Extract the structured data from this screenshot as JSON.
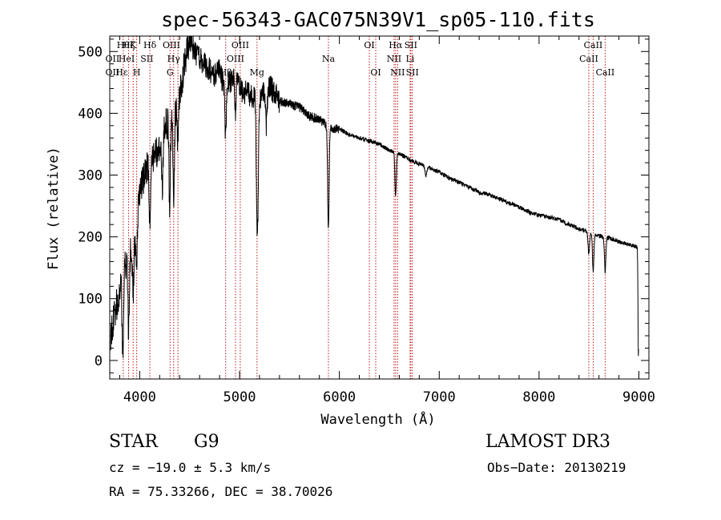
{
  "chart_data": {
    "type": "line",
    "title": "spec-56343-GAC075N39V1_sp05-110.fits",
    "xlabel": "Wavelength (Å)",
    "ylabel": "Flux (relative)",
    "xlim": [
      3700,
      9100
    ],
    "ylim": [
      -30,
      525
    ],
    "xticks": [
      4000,
      5000,
      6000,
      7000,
      8000,
      9000
    ],
    "yticks": [
      0,
      100,
      200,
      300,
      400,
      500
    ],
    "x_minor_step": 200,
    "y_minor_step": 20,
    "continuum": {
      "x": [
        3700,
        3750,
        3800,
        3850,
        3900,
        3950,
        4000,
        4050,
        4100,
        4150,
        4200,
        4250,
        4300,
        4350,
        4400,
        4450,
        4500,
        4550,
        4600,
        4650,
        4700,
        4750,
        4800,
        4850,
        4900,
        4950,
        5000,
        5100,
        5200,
        5300,
        5400,
        5500,
        5600,
        5700,
        5800,
        5900,
        6000,
        6100,
        6200,
        6300,
        6400,
        6500,
        6600,
        6700,
        6800,
        6900,
        7000,
        7100,
        7200,
        7300,
        7400,
        7500,
        7600,
        7700,
        7800,
        7900,
        8000,
        8100,
        8200,
        8300,
        8400,
        8500,
        8600,
        8700,
        8800,
        8900,
        8990
      ],
      "y": [
        30,
        80,
        110,
        150,
        170,
        200,
        270,
        300,
        320,
        330,
        350,
        380,
        390,
        400,
        430,
        480,
        520,
        500,
        490,
        480,
        470,
        460,
        470,
        440,
        450,
        460,
        440,
        430,
        425,
        445,
        420,
        415,
        410,
        395,
        390,
        375,
        375,
        365,
        360,
        355,
        350,
        340,
        335,
        325,
        318,
        312,
        305,
        295,
        288,
        280,
        272,
        268,
        262,
        255,
        248,
        240,
        235,
        232,
        228,
        220,
        213,
        207,
        202,
        198,
        192,
        188,
        183
      ]
    },
    "absorption_lines": [
      {
        "x": 3830,
        "depth": 120
      },
      {
        "x": 3889,
        "depth": 120
      },
      {
        "x": 3934,
        "depth": 90
      },
      {
        "x": 3968,
        "depth": 100
      },
      {
        "x": 4102,
        "depth": 90
      },
      {
        "x": 4227,
        "depth": 90
      },
      {
        "x": 4300,
        "depth": 140
      },
      {
        "x": 4340,
        "depth": 140
      },
      {
        "x": 4383,
        "depth": 70
      },
      {
        "x": 4861,
        "depth": 80
      },
      {
        "x": 4957,
        "depth": 60
      },
      {
        "x": 5172,
        "depth": 140
      },
      {
        "x": 5183,
        "depth": 160
      },
      {
        "x": 5270,
        "depth": 60
      },
      {
        "x": 5890,
        "depth": 165
      },
      {
        "x": 6563,
        "depth": 70
      },
      {
        "x": 6867,
        "depth": 15
      },
      {
        "x": 8498,
        "depth": 35
      },
      {
        "x": 8542,
        "depth": 60
      },
      {
        "x": 8662,
        "depth": 55
      },
      {
        "x": 8995,
        "depth": 180
      }
    ],
    "noise_seed": 56343,
    "line_markers": [
      {
        "x": 3835,
        "label": "Hθ",
        "row": 0
      },
      {
        "x": 3889,
        "label": "Hζ",
        "row": 0
      },
      {
        "x": 3934,
        "label": "K",
        "row": 0
      },
      {
        "x": 4102,
        "label": "Hδ",
        "row": 0
      },
      {
        "x": 4318,
        "label": "OIII",
        "row": 0
      },
      {
        "x": 5007,
        "label": "OIII",
        "row": 0
      },
      {
        "x": 6300,
        "label": "OI",
        "row": 0
      },
      {
        "x": 6563,
        "label": "Hα",
        "row": 0
      },
      {
        "x": 6716,
        "label": "SII",
        "row": 0
      },
      {
        "x": 8542,
        "label": "CaII",
        "row": 0
      },
      {
        "x": 3727,
        "label": "OII",
        "row": 1
      },
      {
        "x": 3869,
        "label": "HeI",
        "row": 1
      },
      {
        "x": 4072,
        "label": "SII",
        "row": 1
      },
      {
        "x": 4340,
        "label": "Hγ",
        "row": 1
      },
      {
        "x": 4959,
        "label": "OIII",
        "row": 1
      },
      {
        "x": 5890,
        "label": "Na",
        "row": 1
      },
      {
        "x": 6548,
        "label": "NII",
        "row": 1
      },
      {
        "x": 6708,
        "label": "Li",
        "row": 1
      },
      {
        "x": 8498,
        "label": "CaII",
        "row": 1
      },
      {
        "x": 3727,
        "label": "OII",
        "row": 2
      },
      {
        "x": 3820,
        "label": "Hε",
        "row": 2
      },
      {
        "x": 3970,
        "label": "H",
        "row": 2
      },
      {
        "x": 4304,
        "label": "G",
        "row": 2
      },
      {
        "x": 4861,
        "label": "Hβ",
        "row": 2
      },
      {
        "x": 5175,
        "label": "Mg",
        "row": 2
      },
      {
        "x": 6364,
        "label": "OI",
        "row": 2
      },
      {
        "x": 6583,
        "label": "NII",
        "row": 2
      },
      {
        "x": 6731,
        "label": "SII",
        "row": 2
      },
      {
        "x": 8662,
        "label": "CaII",
        "row": 2
      }
    ],
    "marker_lines_x": [
      3835,
      3889,
      3934,
      3970,
      4102,
      4304,
      4340,
      4383,
      4861,
      4959,
      5007,
      5175,
      5890,
      6300,
      6364,
      6548,
      6563,
      6583,
      6708,
      6716,
      6731,
      8498,
      8542,
      8662
    ]
  },
  "info": {
    "object_class": "STAR",
    "subclass": "G9",
    "survey": "LAMOST DR3",
    "redshift": "cz = −19.0 ± 5.3 km/s",
    "obs_date": "Obs−Date: 20130219",
    "coords": "RA =  75.33266, DEC =  38.70026"
  }
}
